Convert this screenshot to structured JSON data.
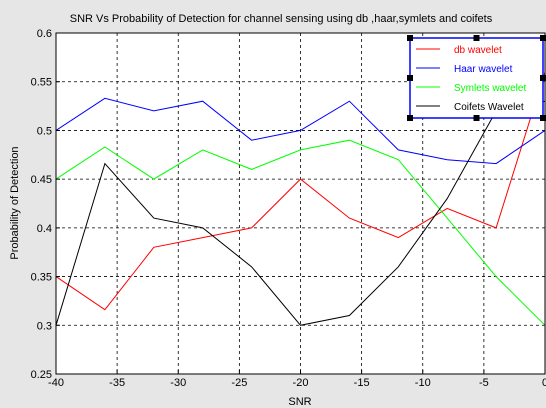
{
  "chart_data": {
    "type": "line",
    "title": "SNR Vs  Probability of Detection  for channel sensing using db ,haar,symlets and coifets",
    "xlabel": "SNR",
    "ylabel": "Probability of Detection",
    "xlim": [
      -40,
      0
    ],
    "ylim": [
      0.25,
      0.6
    ],
    "xticks": [
      "-40",
      "-35",
      "-30",
      "-25",
      "-20",
      "-15",
      "-10",
      "-5",
      "0"
    ],
    "xtick_values": [
      -40,
      -35,
      -30,
      -25,
      -20,
      -15,
      -10,
      -5,
      0
    ],
    "yticks": [
      "0.25",
      "0.3",
      "0.35",
      "0.4",
      "0.45",
      "0.5",
      "0.55",
      "0.6"
    ],
    "ytick_values": [
      0.25,
      0.3,
      0.35,
      0.4,
      0.45,
      0.5,
      0.55,
      0.6
    ],
    "grid": true,
    "legend_position": "top-right",
    "x": [
      -40,
      -36,
      -32,
      -28,
      -24,
      -20,
      -16,
      -12,
      -8,
      -4,
      0
    ],
    "series": [
      {
        "name": "db wavelet",
        "color": "#ff0000",
        "values": [
          0.35,
          0.316,
          0.38,
          0.39,
          0.4,
          0.45,
          0.41,
          0.39,
          0.42,
          0.4,
          0.56
        ]
      },
      {
        "name": "Haar wavelet",
        "color": "#0000ff",
        "values": [
          0.5,
          0.533,
          0.52,
          0.53,
          0.49,
          0.5,
          0.53,
          0.48,
          0.47,
          0.466,
          0.5
        ]
      },
      {
        "name": "Symlets wavelet",
        "color": "#00ff00",
        "values": [
          0.45,
          0.483,
          0.45,
          0.48,
          0.46,
          0.48,
          0.49,
          0.47,
          0.41,
          0.35,
          0.3
        ]
      },
      {
        "name": "Coifets Wavelet",
        "color": "#000000",
        "values": [
          0.3,
          0.466,
          0.41,
          0.4,
          0.36,
          0.3,
          0.31,
          0.36,
          0.43,
          0.52,
          0.53
        ]
      }
    ]
  }
}
